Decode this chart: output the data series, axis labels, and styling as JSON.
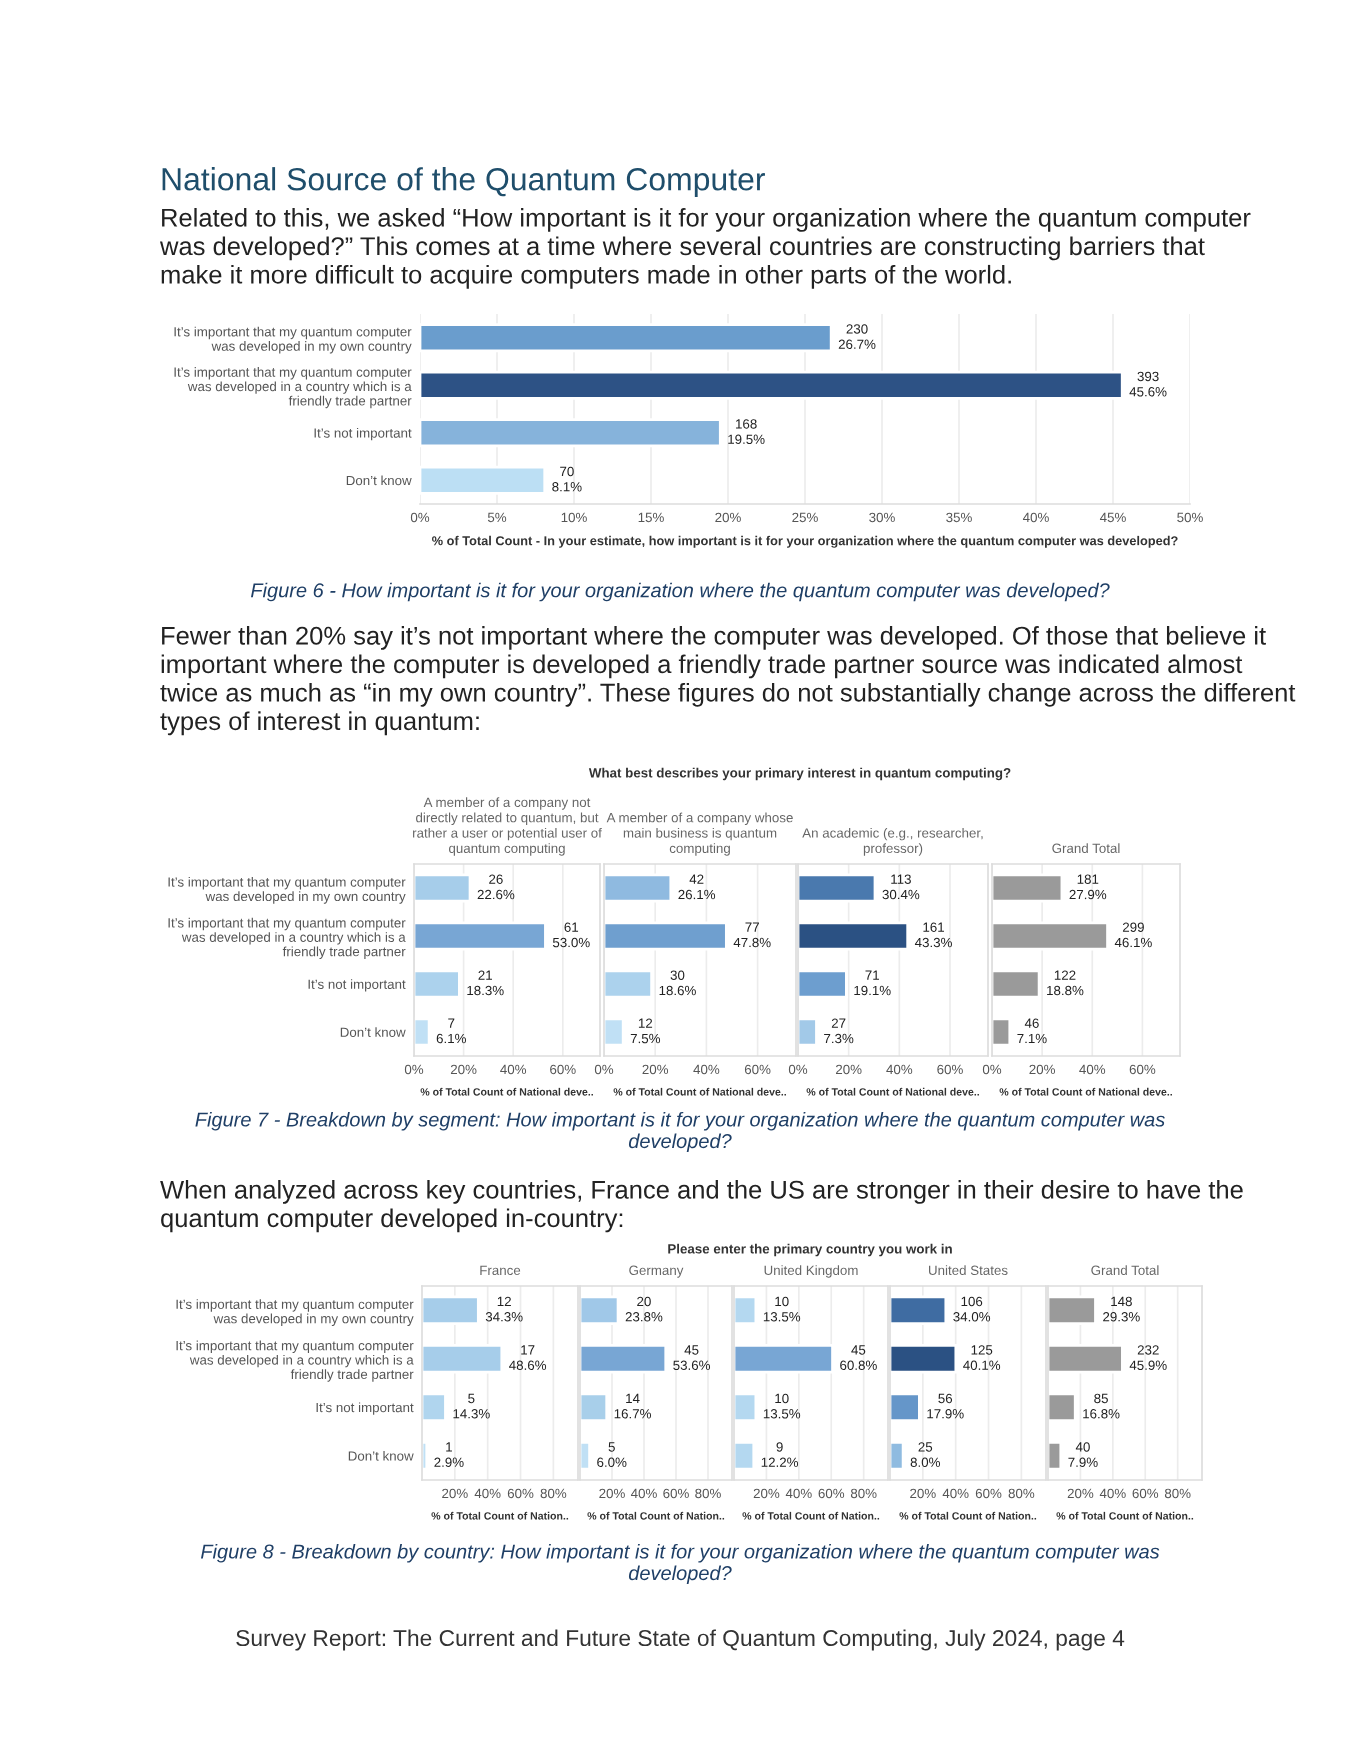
{
  "chart_data": [
    {
      "type": "bar",
      "orientation": "horizontal",
      "title": "National Source of the Quantum Computer",
      "subtitle": "Related to this, we asked “How important is it for your organization where the quantum computer\nwas developed?” This comes at a time where several countries are constructing barriers that\nmake it more difficult to acquire computers made in other parts of the world.",
      "categories": [
        "It’s important that my quantum computer\nwas developed in my own country",
        "It’s important that my quantum computer\nwas developed in a country which is a\nfriendly trade partner",
        "It’s not important",
        "Don’t know"
      ],
      "values": [
        26.7,
        45.6,
        19.5,
        8.1
      ],
      "colors": [
        "#6a9dcd",
        "#2d5285",
        "#86b3db",
        "#bcdff4"
      ],
      "value_labels": [
        "230\n26.7%",
        "393\n45.6%",
        "168\n19.5%",
        "70\n8.1%"
      ],
      "xlim": [
        0,
        50
      ],
      "xticks": [
        {
          "value": 0,
          "label": "0%"
        },
        {
          "value": 5,
          "label": "5%"
        },
        {
          "value": 10,
          "label": "10%"
        },
        {
          "value": 15,
          "label": "15%"
        },
        {
          "value": 20,
          "label": "20%"
        },
        {
          "value": 25,
          "label": "25%"
        },
        {
          "value": 30,
          "label": "30%"
        },
        {
          "value": 35,
          "label": "35%"
        },
        {
          "value": 40,
          "label": "40%"
        },
        {
          "value": 45,
          "label": "45%"
        },
        {
          "value": 50,
          "label": "50%"
        }
      ],
      "grid": "x",
      "xlabel": "% of Total Count - In your estimate, how important is it for your organization where the quantum computer was developed?",
      "annotations": [
        "Figure 6 - How important is it for your organization where the quantum computer was developed?",
        "Fewer than 20% say it’s not important where the computer was developed. Of those that believe it\nimportant where the computer is developed a friendly trade partner source was indicated almost\ntwice as much as “in my own country”. These figures do not substantially change across the different\ntypes of interest in quantum:"
      ]
    },
    {
      "type": "bar",
      "orientation": "horizontal",
      "title": "A member of a company not\ndirectly related to quantum, but\nrather a user or potential user of\nquantum computing",
      "categories": [
        "It’s important that my quantum computer\nwas developed in my own country",
        "It’s important that my quantum computer\nwas developed in a country which is a\nfriendly trade partner",
        "It’s not important",
        "Don’t know"
      ],
      "values": [
        22.6,
        53.0,
        18.3,
        6.1
      ],
      "colors": [
        "#a6cdea",
        "#78a6d4",
        "#acd2ed",
        "#c0e0f5"
      ],
      "value_labels": [
        "26\n22.6%",
        "61\n53.0%",
        "21\n18.3%",
        "7\n6.1%"
      ],
      "xlim": [
        0,
        75
      ],
      "xticks": [
        {
          "value": 0,
          "label": "0%"
        },
        {
          "value": 20,
          "label": "20%"
        },
        {
          "value": 40,
          "label": "40%"
        },
        {
          "value": 60,
          "label": "60%"
        }
      ],
      "grid": "x",
      "xlabel": "% of Total Count of National deve..",
      "annotations": [
        "What best describes your primary interest in quantum computing?"
      ]
    },
    {
      "type": "bar",
      "orientation": "horizontal",
      "title": "A member of a company whose\nmain business is quantum\ncomputing",
      "categories": [
        null,
        null,
        null,
        null
      ],
      "values": [
        26.1,
        47.8,
        18.6,
        7.5
      ],
      "colors": [
        "#8fbae0",
        "#6f9fcf",
        "#acd2ed",
        "#c0e0f5"
      ],
      "value_labels": [
        "42\n26.1%",
        "77\n47.8%",
        "30\n18.6%",
        "12\n7.5%"
      ],
      "xlim": [
        0,
        75
      ],
      "xticks": [
        {
          "value": 0,
          "label": "0%"
        },
        {
          "value": 20,
          "label": "20%"
        },
        {
          "value": 40,
          "label": "40%"
        },
        {
          "value": 60,
          "label": "60%"
        }
      ],
      "grid": "x",
      "xlabel": "% of Total Count of National deve..",
      "tick_labels": "x"
    },
    {
      "type": "bar",
      "orientation": "horizontal",
      "title": "An academic (e.g., researcher,\nprofessor)",
      "categories": [
        null,
        null,
        null,
        null
      ],
      "values": [
        30.4,
        43.3,
        19.1,
        7.3
      ],
      "colors": [
        "#4a79ae",
        "#2b5183",
        "#6d9ecf",
        "#a2c9e8"
      ],
      "value_labels": [
        "113\n30.4%",
        "161\n43.3%",
        "71\n19.1%",
        "27\n7.3%"
      ],
      "xlim": [
        0,
        75
      ],
      "xticks": [
        {
          "value": 0,
          "label": "0%"
        },
        {
          "value": 20,
          "label": "20%"
        },
        {
          "value": 40,
          "label": "40%"
        },
        {
          "value": 60,
          "label": "60%"
        }
      ],
      "grid": "x",
      "xlabel": "% of Total Count of National deve..",
      "tick_labels": "x"
    },
    {
      "type": "bar",
      "orientation": "horizontal",
      "title": "Grand Total",
      "categories": [
        null,
        null,
        null,
        null
      ],
      "values": [
        27.9,
        46.1,
        18.8,
        7.1
      ],
      "colors": [
        "#9a9a9a",
        "#9a9a9a",
        "#9a9a9a",
        "#9a9a9a"
      ],
      "value_labels": [
        "181\n27.9%",
        "299\n46.1%",
        "122\n18.8%",
        "46\n7.1%"
      ],
      "xlim": [
        0,
        75
      ],
      "xticks": [
        {
          "value": 0,
          "label": "0%"
        },
        {
          "value": 20,
          "label": "20%"
        },
        {
          "value": 40,
          "label": "40%"
        },
        {
          "value": 60,
          "label": "60%"
        }
      ],
      "grid": "x",
      "xlabel": "% of Total Count of National deve..",
      "tick_labels": "x",
      "annotations": [
        "Figure 7 - Breakdown by segment: How important is it for your organization where the quantum computer was\ndeveloped?",
        "When analyzed across key countries, France and the US are stronger in their desire to have the\nquantum computer developed in-country:"
      ]
    },
    {
      "type": "bar",
      "orientation": "horizontal",
      "title": "France",
      "categories": [
        "It’s important that my quantum computer\nwas developed in my own country",
        "It’s important that my quantum computer\nwas developed in a country which is a\nfriendly trade partner",
        "It’s not important",
        "Don’t know"
      ],
      "values": [
        34.3,
        48.6,
        14.3,
        2.9
      ],
      "colors": [
        "#a6cdea",
        "#a6cdea",
        "#b0d5ee",
        "#c0e0f5"
      ],
      "value_labels": [
        "12\n34.3%",
        "17\n48.6%",
        "5\n14.3%",
        "1\n2.9%"
      ],
      "xlim": [
        0,
        95
      ],
      "xticks": [
        {
          "value": 20,
          "label": "20%"
        },
        {
          "value": 40,
          "label": "40%"
        },
        {
          "value": 60,
          "label": "60%"
        },
        {
          "value": 80,
          "label": "80%"
        }
      ],
      "grid": "x",
      "xlabel": "% of Total Count of Nation..",
      "annotations": [
        "Please enter the primary country you work in"
      ]
    },
    {
      "type": "bar",
      "orientation": "horizontal",
      "title": "Germany",
      "categories": [
        null,
        null,
        null,
        null
      ],
      "values": [
        23.8,
        53.6,
        16.7,
        6.0
      ],
      "colors": [
        "#a0c8e8",
        "#78a6d4",
        "#a8cfea",
        "#c0e0f5"
      ],
      "value_labels": [
        "20\n23.8%",
        "45\n53.6%",
        "14\n16.7%",
        "5\n6.0%"
      ],
      "xlim": [
        0,
        95
      ],
      "xticks": [
        {
          "value": 20,
          "label": "20%"
        },
        {
          "value": 40,
          "label": "40%"
        },
        {
          "value": 60,
          "label": "60%"
        },
        {
          "value": 80,
          "label": "80%"
        }
      ],
      "grid": "x",
      "xlabel": "% of Total Count of Nation..",
      "tick_labels": "x"
    },
    {
      "type": "bar",
      "orientation": "horizontal",
      "title": "United Kingdom",
      "categories": [
        null,
        null,
        null,
        null
      ],
      "values": [
        13.5,
        60.8,
        13.5,
        12.2
      ],
      "colors": [
        "#b4d8f0",
        "#78a6d4",
        "#b4d8f0",
        "#b4d8f0"
      ],
      "value_labels": [
        "10\n13.5%",
        "45\n60.8%",
        "10\n13.5%",
        "9\n12.2%"
      ],
      "xlim": [
        0,
        95
      ],
      "xticks": [
        {
          "value": 20,
          "label": "20%"
        },
        {
          "value": 40,
          "label": "40%"
        },
        {
          "value": 60,
          "label": "60%"
        },
        {
          "value": 80,
          "label": "80%"
        }
      ],
      "grid": "x",
      "xlabel": "% of Total Count of Nation..",
      "tick_labels": "x"
    },
    {
      "type": "bar",
      "orientation": "horizontal",
      "title": "United States",
      "categories": [
        null,
        null,
        null,
        null
      ],
      "values": [
        34.0,
        40.1,
        17.9,
        8.0
      ],
      "colors": [
        "#3f6ca2",
        "#2b5183",
        "#6596c9",
        "#8fbbe0"
      ],
      "value_labels": [
        "106\n34.0%",
        "125\n40.1%",
        "56\n17.9%",
        "25\n8.0%"
      ],
      "xlim": [
        0,
        95
      ],
      "xticks": [
        {
          "value": 20,
          "label": "20%"
        },
        {
          "value": 40,
          "label": "40%"
        },
        {
          "value": 60,
          "label": "60%"
        },
        {
          "value": 80,
          "label": "80%"
        }
      ],
      "grid": "x",
      "xlabel": "% of Total Count of Nation..",
      "tick_labels": "x"
    },
    {
      "type": "bar",
      "orientation": "horizontal",
      "title": "Grand Total",
      "categories": [
        null,
        null,
        null,
        null
      ],
      "values": [
        29.3,
        45.9,
        16.8,
        7.9
      ],
      "colors": [
        "#9a9a9a",
        "#9a9a9a",
        "#9a9a9a",
        "#9a9a9a"
      ],
      "value_labels": [
        "148\n29.3%",
        "232\n45.9%",
        "85\n16.8%",
        "40\n7.9%"
      ],
      "xlim": [
        0,
        95
      ],
      "xticks": [
        {
          "value": 20,
          "label": "20%"
        },
        {
          "value": 40,
          "label": "40%"
        },
        {
          "value": 60,
          "label": "60%"
        },
        {
          "value": 80,
          "label": "80%"
        }
      ],
      "grid": "x",
      "xlabel": "% of Total Count of Nation..",
      "tick_labels": "x",
      "annotations": [
        "Figure 8 - Breakdown by country: How important is it for your organization where the quantum computer was\ndeveloped?",
        "Survey Report: The Current and Future State of Quantum Computing, July 2024, page 4"
      ]
    }
  ]
}
